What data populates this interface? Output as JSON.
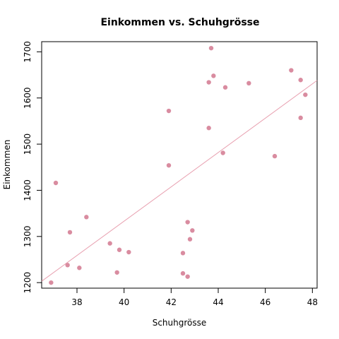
{
  "chart_data": {
    "type": "scatter",
    "title": "Einkommen vs. Schuhgrösse",
    "xlabel": "Schuhgrösse",
    "ylabel": "Einkommen",
    "xlim": [
      36.5,
      48.2
    ],
    "ylim": [
      1188,
      1722
    ],
    "x_ticks": [
      38,
      40,
      42,
      44,
      46,
      48
    ],
    "y_ticks": [
      1200,
      1300,
      1400,
      1500,
      1600,
      1700
    ],
    "point_color": "#d98ca0",
    "line_color": "#e8a0b0",
    "grid": false,
    "fit_line": {
      "x": [
        36.5,
        48.2
      ],
      "y": [
        1203,
        1638
      ]
    },
    "points": [
      {
        "x": 36.9,
        "y": 1200
      },
      {
        "x": 37.1,
        "y": 1416
      },
      {
        "x": 37.6,
        "y": 1238
      },
      {
        "x": 37.7,
        "y": 1309
      },
      {
        "x": 38.1,
        "y": 1232
      },
      {
        "x": 38.4,
        "y": 1342
      },
      {
        "x": 39.4,
        "y": 1285
      },
      {
        "x": 39.7,
        "y": 1222
      },
      {
        "x": 39.8,
        "y": 1271
      },
      {
        "x": 40.2,
        "y": 1266
      },
      {
        "x": 41.9,
        "y": 1572
      },
      {
        "x": 41.9,
        "y": 1454
      },
      {
        "x": 42.5,
        "y": 1264
      },
      {
        "x": 42.5,
        "y": 1220
      },
      {
        "x": 42.7,
        "y": 1331
      },
      {
        "x": 42.7,
        "y": 1213
      },
      {
        "x": 42.8,
        "y": 1294
      },
      {
        "x": 42.9,
        "y": 1313
      },
      {
        "x": 43.6,
        "y": 1535
      },
      {
        "x": 43.6,
        "y": 1634
      },
      {
        "x": 43.7,
        "y": 1708
      },
      {
        "x": 43.8,
        "y": 1648
      },
      {
        "x": 44.2,
        "y": 1481
      },
      {
        "x": 44.3,
        "y": 1623
      },
      {
        "x": 45.3,
        "y": 1632
      },
      {
        "x": 46.4,
        "y": 1474
      },
      {
        "x": 47.1,
        "y": 1660
      },
      {
        "x": 47.5,
        "y": 1639
      },
      {
        "x": 47.5,
        "y": 1557
      },
      {
        "x": 47.7,
        "y": 1607
      }
    ]
  }
}
